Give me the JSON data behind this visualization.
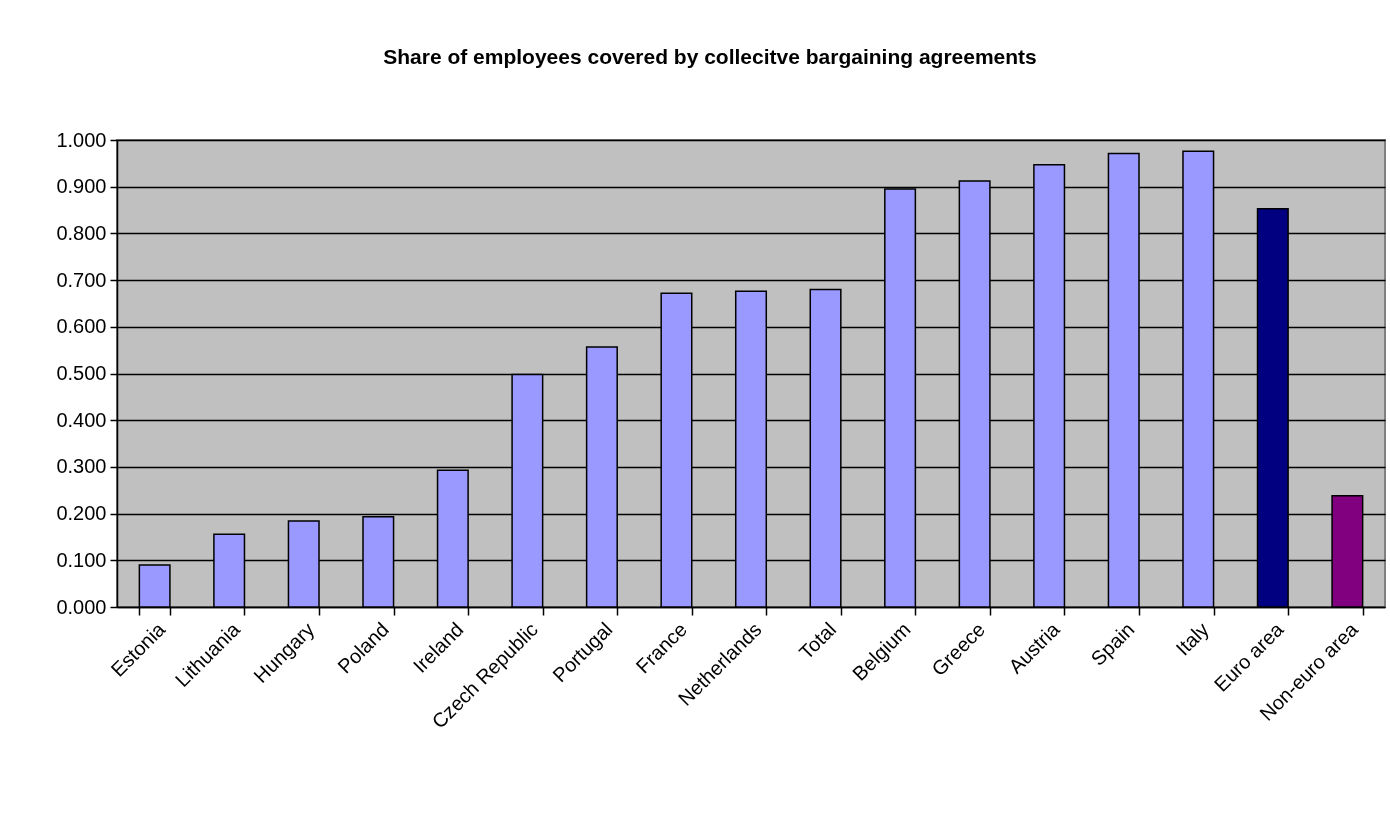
{
  "chart_data": {
    "type": "bar",
    "title": "Share of employees covered by collecitve bargaining agreements",
    "categories": [
      "Estonia",
      "Lithuania",
      "Hungary",
      "Poland",
      "Ireland",
      "Czech Republic",
      "Portugal",
      "France",
      "Netherlands",
      "Total",
      "Belgium",
      "Greece",
      "Austria",
      "Spain",
      "Italy",
      "Euro area",
      "Non-euro area"
    ],
    "values": [
      0.09,
      0.156,
      0.184,
      0.193,
      0.293,
      0.498,
      0.557,
      0.672,
      0.676,
      0.68,
      0.895,
      0.912,
      0.947,
      0.971,
      0.976,
      0.853,
      0.238
    ],
    "colors": [
      "#9999ff",
      "#9999ff",
      "#9999ff",
      "#9999ff",
      "#9999ff",
      "#9999ff",
      "#9999ff",
      "#9999ff",
      "#9999ff",
      "#9999ff",
      "#9999ff",
      "#9999ff",
      "#9999ff",
      "#9999ff",
      "#9999ff",
      "#000080",
      "#800080"
    ],
    "ylim": [
      0,
      1
    ],
    "yticks": [
      {
        "value": 0,
        "label": "0.000"
      },
      {
        "value": 0.1,
        "label": "0.100"
      },
      {
        "value": 0.2,
        "label": "0.200"
      },
      {
        "value": 0.3,
        "label": "0.300"
      },
      {
        "value": 0.4,
        "label": "0.400"
      },
      {
        "value": 0.5,
        "label": "0.500"
      },
      {
        "value": 0.6,
        "label": "0.600"
      },
      {
        "value": 0.7,
        "label": "0.700"
      },
      {
        "value": 0.8,
        "label": "0.800"
      },
      {
        "value": 0.9,
        "label": "0.900"
      },
      {
        "value": 1,
        "label": "1.000"
      }
    ],
    "grid": "y"
  }
}
